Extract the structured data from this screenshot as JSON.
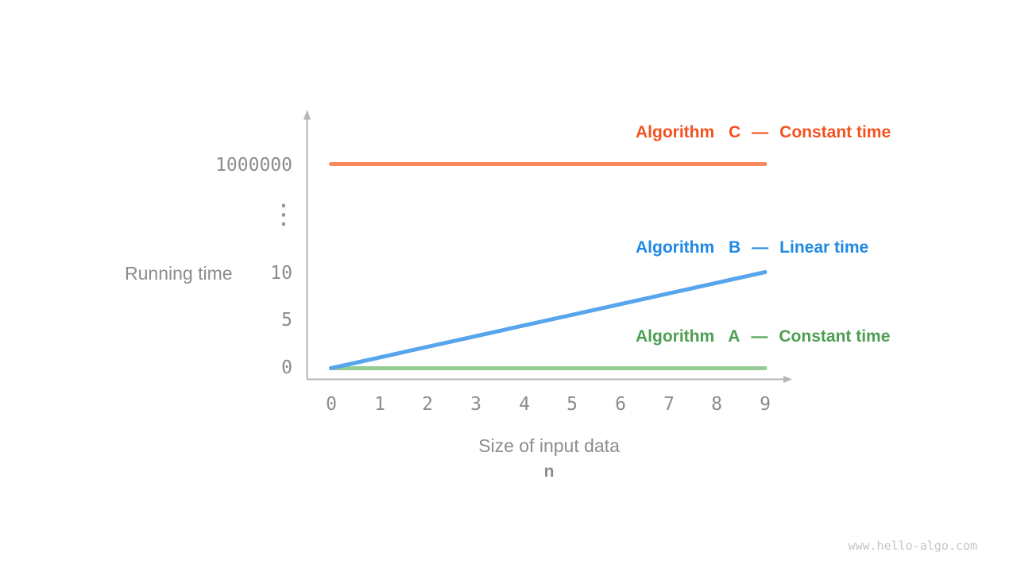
{
  "chart_data": {
    "type": "line",
    "title": "",
    "x_axis": {
      "label": "Size of input data",
      "sublabel": "n",
      "ticks": [
        "0",
        "1",
        "2",
        "3",
        "4",
        "5",
        "6",
        "7",
        "8",
        "9"
      ],
      "range": [
        0,
        9
      ]
    },
    "y_axis": {
      "label": "Running time",
      "ticks_top_to_bottom": [
        "1000000",
        "⋮",
        "10",
        "5",
        "0"
      ],
      "break_symbol": "⋮",
      "break_note": "axis break between 10 and 1000000",
      "linear_range": [
        0,
        10
      ]
    },
    "series": [
      {
        "name": "Algorithm C",
        "dash": "—",
        "complexity": "Constant time",
        "kind": "constant",
        "points": [
          [
            0,
            1000000
          ],
          [
            9,
            1000000
          ]
        ],
        "text_color": "#f4511e",
        "line_color": "#f68a5e"
      },
      {
        "name": "Algorithm B",
        "dash": "—",
        "complexity": "Linear time",
        "kind": "linear",
        "points": [
          [
            0,
            0
          ],
          [
            9,
            10
          ]
        ],
        "text_color": "#1e88e5",
        "line_color": "#57a5ec"
      },
      {
        "name": "Algorithm A",
        "dash": "—",
        "complexity": "Constant time",
        "kind": "constant",
        "points": [
          [
            0,
            0
          ],
          [
            9,
            0
          ]
        ],
        "text_color": "#4c9e53",
        "line_color": "#94cc93"
      }
    ],
    "grid": false,
    "legend_position": "inline-right-above-each-line"
  },
  "colors": {
    "axis": "#b6b6b6",
    "tick_text": "#8c8c8c",
    "watermark": "#c6c6c6",
    "background": "#ffffff"
  },
  "footer": {
    "watermark": "www.hello-algo.com"
  }
}
